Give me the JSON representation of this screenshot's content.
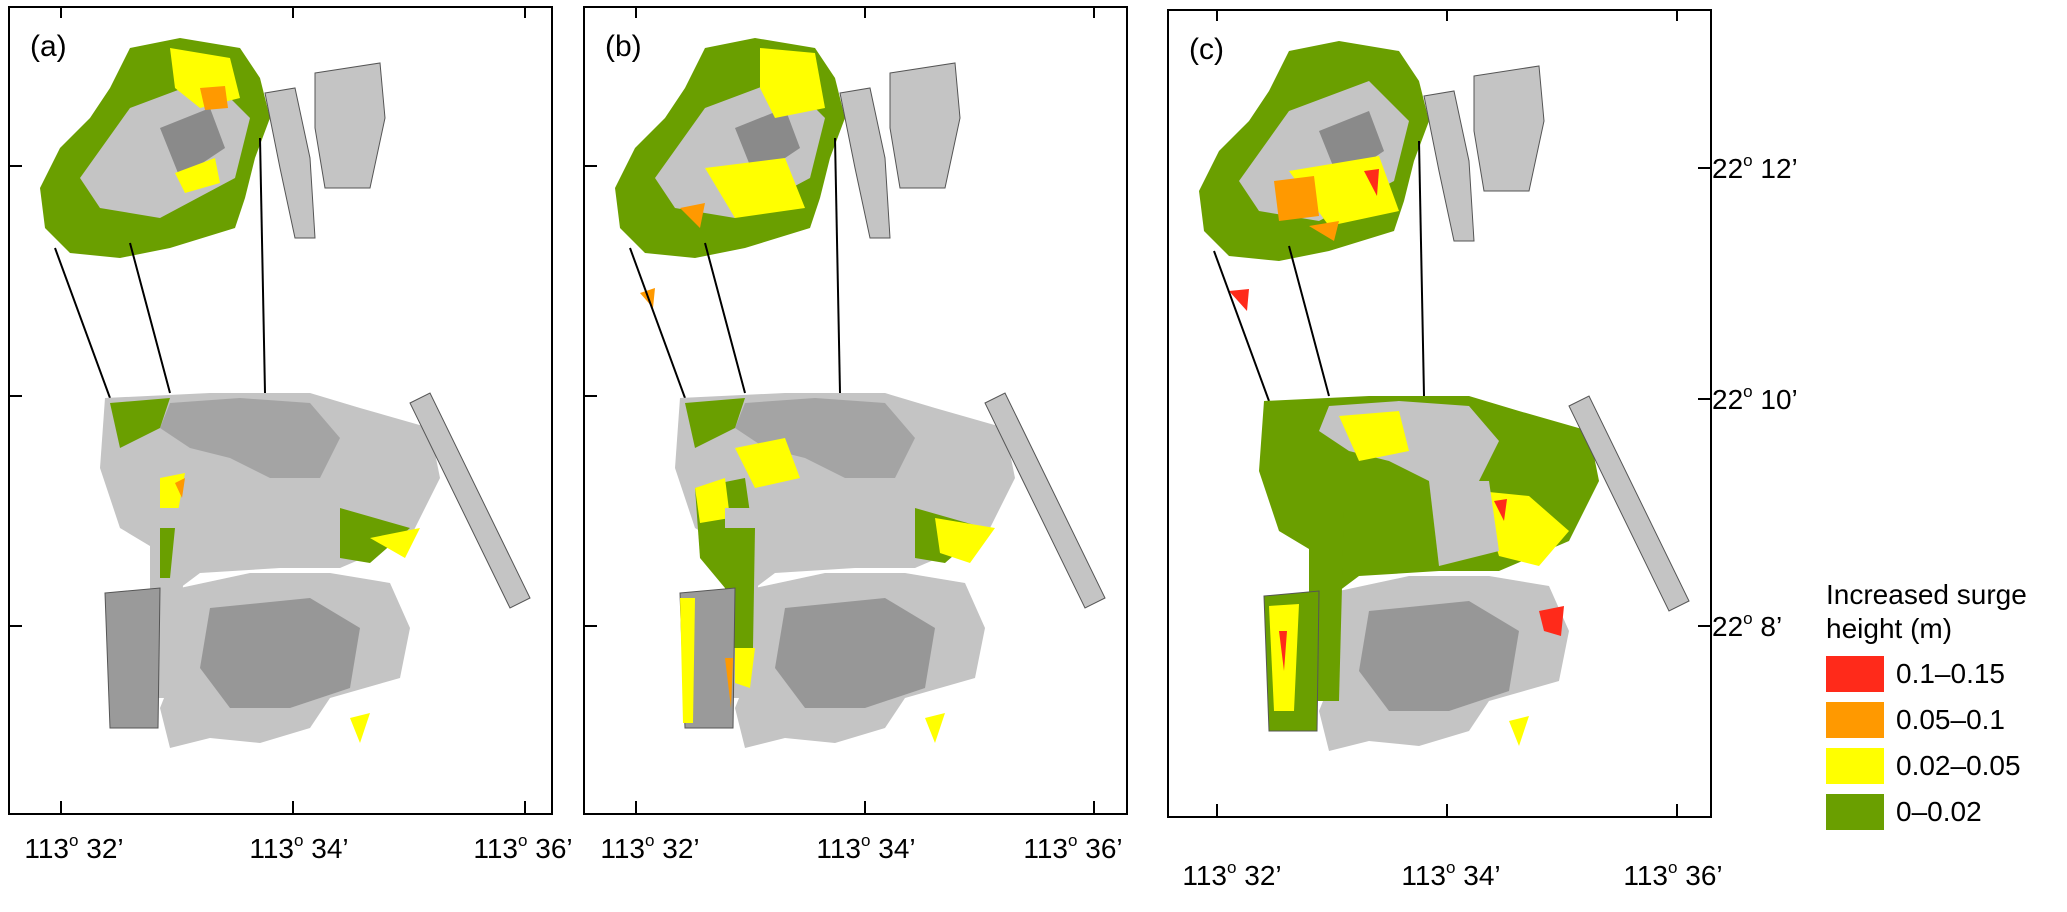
{
  "panels": [
    {
      "id": "a",
      "label": "(a)"
    },
    {
      "id": "b",
      "label": "(b)"
    },
    {
      "id": "c",
      "label": "(c)"
    }
  ],
  "x_ticks": [
    {
      "deg": "113",
      "min": "32’"
    },
    {
      "deg": "113",
      "min": "34’"
    },
    {
      "deg": "113",
      "min": "36’"
    }
  ],
  "y_ticks": [
    {
      "deg": "22",
      "min": "12’"
    },
    {
      "deg": "22",
      "min": "10’"
    },
    {
      "deg": "22",
      "min": "8’"
    }
  ],
  "degree_symbol": "o",
  "legend": {
    "title_line1": "Increased surge",
    "title_line2": "height (m)",
    "items": [
      {
        "label": "0.1–0.15",
        "color": "#ff2a1a"
      },
      {
        "label": "0.05–0.1",
        "color": "#ff9900"
      },
      {
        "label": "0.02–0.05",
        "color": "#ffff00"
      },
      {
        "label": "0–0.02",
        "color": "#6a9f00"
      }
    ]
  },
  "colors": {
    "land": "#c4c4c4",
    "land_shadow": "#8a8a8a",
    "frame": "#000000"
  }
}
